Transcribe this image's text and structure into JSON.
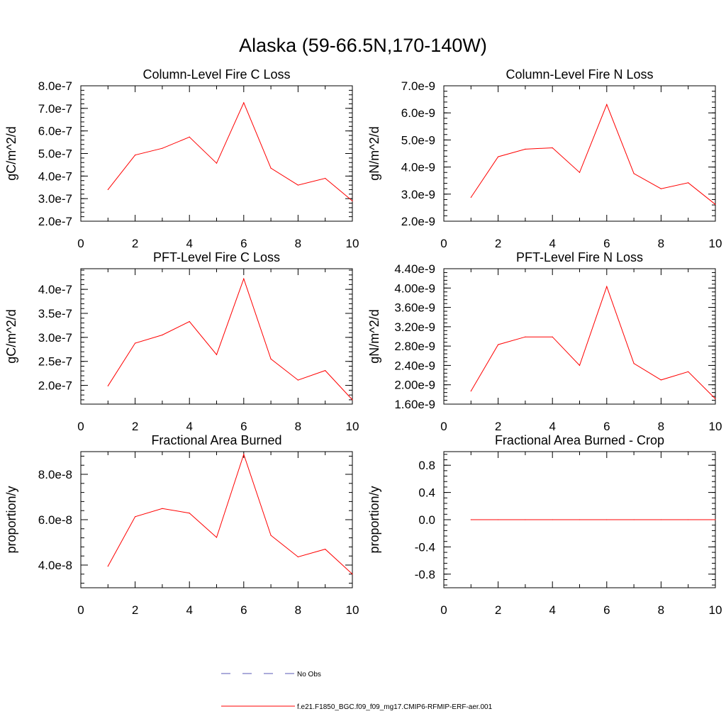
{
  "figure": {
    "title": "Alaska (59-66.5N,170-140W)"
  },
  "legend": {
    "entries": [
      {
        "label": "No Obs",
        "style": "dashed",
        "color": "#5a5ab4"
      },
      {
        "label": "f.e21.F1850_BGC.f09_f09_mg17.CMIP6-RFMIP-ERF-aer.001",
        "style": "solid",
        "color": "#ff0000"
      }
    ],
    "placement": "bottom-center"
  },
  "chart_data": [
    {
      "type": "line",
      "title": "Column-Level Fire C Loss",
      "xlabel": "",
      "ylabel": "gC/m^2/d",
      "xlim": [
        0,
        10
      ],
      "ylim": [
        2e-07,
        8e-07
      ],
      "xticks": [
        0,
        2,
        4,
        6,
        8,
        10
      ],
      "yticks": [
        2e-07,
        3e-07,
        4e-07,
        5e-07,
        6e-07,
        7e-07,
        8e-07
      ],
      "ytick_labels": [
        "2.0e-7",
        "3.0e-7",
        "4.0e-7",
        "5.0e-7",
        "6.0e-7",
        "7.0e-7",
        "8.0e-7"
      ],
      "series": [
        {
          "name": "f.e21.F1850_BGC.f09_f09_mg17.CMIP6-RFMIP-ERF-aer.001",
          "color": "#ff0000",
          "x": [
            1,
            2,
            3,
            4,
            5,
            6,
            7,
            8,
            9,
            10
          ],
          "y": [
            3.4e-07,
            4.93e-07,
            5.23e-07,
            5.73e-07,
            4.57e-07,
            7.25e-07,
            4.35e-07,
            3.6e-07,
            3.9e-07,
            2.9e-07
          ]
        }
      ]
    },
    {
      "type": "line",
      "title": "Column-Level Fire N Loss",
      "xlabel": "",
      "ylabel": "gN/m^2/d",
      "xlim": [
        0,
        10
      ],
      "ylim": [
        2e-09,
        7e-09
      ],
      "xticks": [
        0,
        2,
        4,
        6,
        8,
        10
      ],
      "yticks": [
        2e-09,
        3e-09,
        4e-09,
        5e-09,
        6e-09,
        7e-09
      ],
      "ytick_labels": [
        "2.0e-9",
        "3.0e-9",
        "4.0e-9",
        "5.0e-9",
        "6.0e-9",
        "7.0e-9"
      ],
      "series": [
        {
          "name": "f.e21.F1850_BGC.f09_f09_mg17.CMIP6-RFMIP-ERF-aer.001",
          "color": "#ff0000",
          "x": [
            1,
            2,
            3,
            4,
            5,
            6,
            7,
            8,
            9,
            10
          ],
          "y": [
            2.88e-09,
            4.38e-09,
            4.66e-09,
            4.71e-09,
            3.8e-09,
            6.31e-09,
            3.76e-09,
            3.2e-09,
            3.42e-09,
            2.62e-09
          ]
        }
      ]
    },
    {
      "type": "line",
      "title": "PFT-Level Fire C Loss",
      "xlabel": "",
      "ylabel": "gC/m^2/d",
      "xlim": [
        0,
        10
      ],
      "ylim": [
        1.61e-07,
        4.43e-07
      ],
      "xticks": [
        0,
        2,
        4,
        6,
        8,
        10
      ],
      "yticks": [
        2e-07,
        2.5e-07,
        3e-07,
        3.5e-07,
        4e-07
      ],
      "ytick_labels": [
        "2.0e-7",
        "2.5e-7",
        "3.0e-7",
        "3.5e-7",
        "4.0e-7"
      ],
      "series": [
        {
          "name": "f.e21.F1850_BGC.f09_f09_mg17.CMIP6-RFMIP-ERF-aer.001",
          "color": "#ff0000",
          "x": [
            1,
            2,
            3,
            4,
            5,
            6,
            7,
            8,
            9,
            10
          ],
          "y": [
            1.99e-07,
            2.88e-07,
            3.05e-07,
            3.33e-07,
            2.64e-07,
            4.22e-07,
            2.55e-07,
            2.11e-07,
            2.31e-07,
            1.7e-07
          ]
        }
      ]
    },
    {
      "type": "line",
      "title": "PFT-Level Fire N Loss",
      "xlabel": "",
      "ylabel": "gN/m^2/d",
      "xlim": [
        0,
        10
      ],
      "ylim": [
        1.6e-09,
        4.4e-09
      ],
      "xticks": [
        0,
        2,
        4,
        6,
        8,
        10
      ],
      "yticks": [
        1.6e-09,
        2e-09,
        2.4e-09,
        2.8e-09,
        3.2e-09,
        3.6e-09,
        4e-09,
        4.4e-09
      ],
      "ytick_labels": [
        "1.60e-9",
        "2.00e-9",
        "2.40e-9",
        "2.80e-9",
        "3.20e-9",
        "3.60e-9",
        "4.00e-9",
        "4.40e-9"
      ],
      "series": [
        {
          "name": "f.e21.F1850_BGC.f09_f09_mg17.CMIP6-RFMIP-ERF-aer.001",
          "color": "#ff0000",
          "x": [
            1,
            2,
            3,
            4,
            5,
            6,
            7,
            8,
            9,
            10
          ],
          "y": [
            1.87e-09,
            2.83e-09,
            2.99e-09,
            2.99e-09,
            2.4e-09,
            4.03e-09,
            2.44e-09,
            2.1e-09,
            2.27e-09,
            1.71e-09
          ]
        }
      ]
    },
    {
      "type": "line",
      "title": "Fractional Area Burned",
      "xlabel": "",
      "ylabel": "proportion/y",
      "xlim": [
        0,
        10
      ],
      "ylim": [
        3e-08,
        9e-08
      ],
      "xticks": [
        0,
        2,
        4,
        6,
        8,
        10
      ],
      "yticks": [
        4e-08,
        6e-08,
        8e-08
      ],
      "ytick_labels": [
        "4.0e-8",
        "6.0e-8",
        "8.0e-8"
      ],
      "series": [
        {
          "name": "f.e21.F1850_BGC.f09_f09_mg17.CMIP6-RFMIP-ERF-aer.001",
          "color": "#ff0000",
          "x": [
            1,
            2,
            3,
            4,
            5,
            6,
            7,
            8,
            9,
            10
          ],
          "y": [
            3.95e-08,
            6.13e-08,
            6.49e-08,
            6.29e-08,
            5.22e-08,
            8.88e-08,
            5.31e-08,
            4.36e-08,
            4.7e-08,
            3.6e-08
          ]
        }
      ]
    },
    {
      "type": "line",
      "title": "Fractional Area Burned - Crop",
      "xlabel": "",
      "ylabel": "proportion/y",
      "xlim": [
        0,
        10
      ],
      "ylim": [
        -1.0,
        1.0
      ],
      "xticks": [
        0,
        2,
        4,
        6,
        8,
        10
      ],
      "yticks": [
        -0.8,
        -0.4,
        0.0,
        0.4,
        0.8
      ],
      "ytick_labels": [
        "-0.8",
        "-0.4",
        "0.0",
        "0.4",
        "0.8"
      ],
      "series": [
        {
          "name": "f.e21.F1850_BGC.f09_f09_mg17.CMIP6-RFMIP-ERF-aer.001",
          "color": "#ff0000",
          "x": [
            1,
            2,
            3,
            4,
            5,
            6,
            7,
            8,
            9,
            10
          ],
          "y": [
            0,
            0,
            0,
            0,
            0,
            0,
            0,
            0,
            0,
            0
          ]
        }
      ]
    }
  ]
}
